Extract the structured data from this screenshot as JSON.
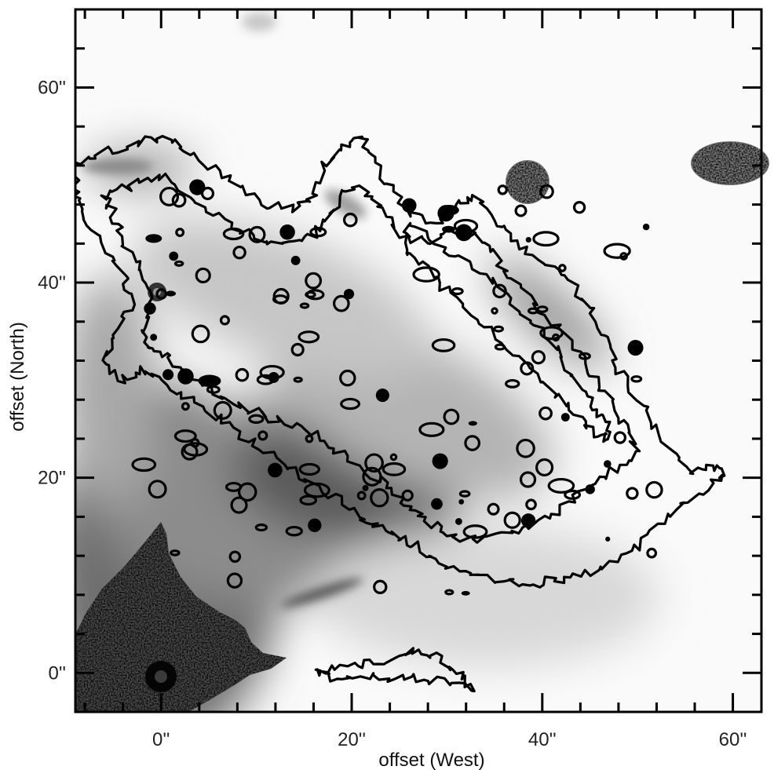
{
  "chart_data": {
    "type": "heatmap",
    "title": "",
    "xlabel": "offset (West)",
    "ylabel": "offset (North)",
    "xlim": [
      -9,
      63
    ],
    "ylim": [
      -4,
      68
    ],
    "xticks": [
      {
        "value": 0,
        "label": "0''"
      },
      {
        "value": 20,
        "label": "20''"
      },
      {
        "value": 40,
        "label": "40''"
      },
      {
        "value": 60,
        "label": "60''"
      }
    ],
    "yticks": [
      {
        "value": 0,
        "label": "0''"
      },
      {
        "value": 20,
        "label": "20''"
      },
      {
        "value": 40,
        "label": "40''"
      },
      {
        "value": 60,
        "label": "60''"
      }
    ],
    "minor_tick_step": 4,
    "colormap": "grayscale",
    "grid": false,
    "legend": "none",
    "contour_levels": 3,
    "features": [
      {
        "name": "central-source",
        "type": "saturated-star",
        "x": 0,
        "y": 0
      },
      {
        "name": "north-east-star",
        "type": "star",
        "x": 0,
        "y": 39
      },
      {
        "name": "north-west-star",
        "type": "saturated-star",
        "x": 37,
        "y": 50
      },
      {
        "name": "far-west-star",
        "type": "saturated-star",
        "x": 57,
        "y": 52
      }
    ],
    "contours": [
      {
        "name": "outer-contour",
        "points": [
          [
            -9,
            52
          ],
          [
            -6,
            53.5
          ],
          [
            -3,
            54
          ],
          [
            0,
            55
          ],
          [
            2,
            54
          ],
          [
            5,
            52
          ],
          [
            8,
            50
          ],
          [
            11,
            48
          ],
          [
            14,
            47.5
          ],
          [
            16,
            49
          ],
          [
            17,
            52
          ],
          [
            19,
            54
          ],
          [
            21,
            55
          ],
          [
            22,
            53
          ],
          [
            24,
            50
          ],
          [
            26,
            47
          ],
          [
            29,
            46
          ],
          [
            31,
            48
          ],
          [
            33,
            49
          ],
          [
            35,
            46
          ],
          [
            37,
            44
          ],
          [
            40,
            42
          ],
          [
            43,
            40
          ],
          [
            45,
            37
          ],
          [
            47,
            34
          ],
          [
            48,
            31
          ],
          [
            50,
            28
          ],
          [
            52,
            25
          ],
          [
            54,
            22
          ],
          [
            56,
            20.5
          ],
          [
            58,
            21
          ],
          [
            59,
            20
          ],
          [
            56,
            18
          ],
          [
            53,
            16
          ],
          [
            50,
            13
          ],
          [
            47,
            11
          ],
          [
            44,
            10
          ],
          [
            41,
            9.5
          ],
          [
            38,
            9
          ],
          [
            35,
            9.5
          ],
          [
            32,
            10
          ],
          [
            29,
            11
          ],
          [
            27,
            13
          ],
          [
            25,
            14
          ],
          [
            23,
            15
          ],
          [
            21,
            16
          ],
          [
            18,
            18
          ],
          [
            15,
            20
          ],
          [
            12,
            22
          ],
          [
            9,
            24
          ],
          [
            6,
            26
          ],
          [
            3,
            28
          ],
          [
            0,
            30
          ],
          [
            -2,
            31
          ],
          [
            -4,
            30
          ],
          [
            -6,
            32
          ],
          [
            -5,
            35
          ],
          [
            -3,
            38
          ],
          [
            -4,
            41
          ],
          [
            -6,
            44
          ],
          [
            -8,
            47
          ],
          [
            -9,
            49
          ]
        ]
      },
      {
        "name": "middle-contour",
        "points": [
          [
            -6,
            49
          ],
          [
            -3,
            50
          ],
          [
            0,
            51
          ],
          [
            3,
            49
          ],
          [
            6,
            47
          ],
          [
            9,
            45
          ],
          [
            12,
            44
          ],
          [
            15,
            44
          ],
          [
            17,
            46
          ],
          [
            19,
            49
          ],
          [
            21,
            50
          ],
          [
            23,
            48
          ],
          [
            25,
            45
          ],
          [
            28,
            44
          ],
          [
            30,
            45
          ],
          [
            33,
            45
          ],
          [
            35,
            43
          ],
          [
            37,
            40
          ],
          [
            40,
            37
          ],
          [
            43,
            34
          ],
          [
            45,
            31
          ],
          [
            47,
            28
          ],
          [
            49,
            25
          ],
          [
            50,
            22.5
          ],
          [
            48,
            21
          ],
          [
            45,
            19
          ],
          [
            42,
            17
          ],
          [
            39,
            15
          ],
          [
            36,
            14
          ],
          [
            33,
            13.5
          ],
          [
            30,
            14
          ],
          [
            28,
            15.5
          ],
          [
            26,
            17
          ],
          [
            24,
            19
          ],
          [
            21,
            21
          ],
          [
            18,
            23
          ],
          [
            15,
            25
          ],
          [
            12,
            26
          ],
          [
            9,
            27
          ],
          [
            6,
            28.5
          ],
          [
            3,
            30.5
          ],
          [
            1,
            32
          ],
          [
            -1,
            33
          ],
          [
            -2,
            35
          ],
          [
            -1,
            38
          ],
          [
            -2,
            41
          ],
          [
            -4,
            44
          ],
          [
            -5,
            47
          ]
        ]
      },
      {
        "name": "inner-filament-contour",
        "points": [
          [
            26,
            46
          ],
          [
            29,
            44
          ],
          [
            32,
            42
          ],
          [
            35,
            40
          ],
          [
            38,
            37
          ],
          [
            41,
            34
          ],
          [
            43,
            31
          ],
          [
            45,
            28
          ],
          [
            46.5,
            26
          ],
          [
            47,
            24
          ],
          [
            45.5,
            24.5
          ],
          [
            43.5,
            26.5
          ],
          [
            41,
            29
          ],
          [
            38,
            32
          ],
          [
            35,
            35
          ],
          [
            32,
            37.5
          ],
          [
            29,
            40
          ],
          [
            27,
            42
          ],
          [
            25.5,
            44
          ]
        ]
      },
      {
        "name": "south-knot-contour",
        "points": [
          [
            16,
            0
          ],
          [
            19,
            0.5
          ],
          [
            22,
            1
          ],
          [
            25,
            1.5
          ],
          [
            27,
            2.5
          ],
          [
            29,
            1.5
          ],
          [
            31,
            0
          ],
          [
            33,
            -1.5
          ],
          [
            30,
            -1
          ],
          [
            27,
            -0.5
          ],
          [
            24,
            -0.5
          ],
          [
            21,
            -0.5
          ],
          [
            18,
            -0.5
          ]
        ]
      }
    ]
  }
}
